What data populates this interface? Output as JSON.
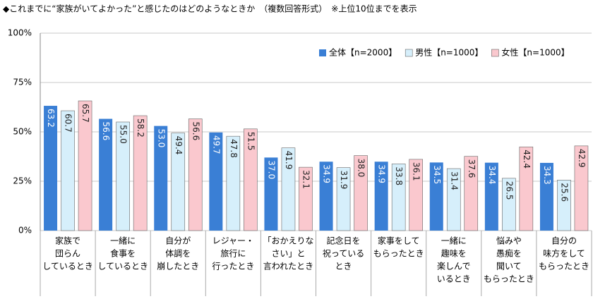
{
  "chart_data": {
    "type": "bar",
    "title": "◆これまでに“家族がいてよかった”と感じたのはどのようなときか　（複数回答形式）　※上位10位までを表示",
    "categories": [
      [
        "家族で",
        "団らん",
        "しているとき"
      ],
      [
        "一緒に",
        "食事を",
        "しているとき"
      ],
      [
        "自分が",
        "体調を",
        "崩したとき"
      ],
      [
        "レジャー・",
        "旅行に",
        "行ったとき"
      ],
      [
        "「おかえりな",
        "さい」と",
        "言われたとき"
      ],
      [
        "記念日を",
        "祝っている",
        "とき"
      ],
      [
        "家事をして",
        "もらったとき"
      ],
      [
        "一緒に",
        "趣味を",
        "楽しんで",
        "いるとき"
      ],
      [
        "悩みや",
        "愚痴を",
        "聞いて",
        "もらったとき"
      ],
      [
        "自分の",
        "味方をして",
        "もらったとき"
      ]
    ],
    "series": [
      {
        "name": "全体【n=2000】",
        "color": "#3a7fd5",
        "values": [
          63.2,
          56.6,
          53.0,
          49.7,
          37.0,
          34.9,
          34.9,
          34.5,
          34.4,
          34.3
        ],
        "value_labels": [
          "63.2",
          "56.6",
          "53.0",
          "49.7",
          "37.0",
          "34.9",
          "34.9",
          "34.5",
          "34.4",
          "34.3"
        ]
      },
      {
        "name": "男性【n=1000】",
        "color": "#d6effb",
        "values": [
          60.7,
          55.0,
          49.4,
          47.8,
          41.9,
          31.9,
          33.8,
          31.4,
          26.5,
          25.6
        ],
        "value_labels": [
          "60.7",
          "55.0",
          "49.4",
          "47.8",
          "41.9",
          "31.9",
          "33.8",
          "31.4",
          "26.5",
          "25.6"
        ]
      },
      {
        "name": "女性【n=1000】",
        "color": "#fac8ce",
        "values": [
          65.7,
          58.2,
          56.6,
          51.5,
          32.1,
          38.0,
          36.1,
          37.6,
          42.4,
          42.9
        ],
        "value_labels": [
          "65.7",
          "58.2",
          "56.6",
          "51.5",
          "32.1",
          "38.0",
          "36.1",
          "37.6",
          "42.4",
          "42.9"
        ]
      }
    ],
    "ylim": [
      0,
      100
    ],
    "yticks": [
      {
        "value": 0,
        "label": "0%"
      },
      {
        "value": 25,
        "label": "25%"
      },
      {
        "value": 50,
        "label": "50%"
      },
      {
        "value": 75,
        "label": "75%"
      },
      {
        "value": 100,
        "label": "100%"
      }
    ],
    "grid": true,
    "legend": "upper-right"
  }
}
